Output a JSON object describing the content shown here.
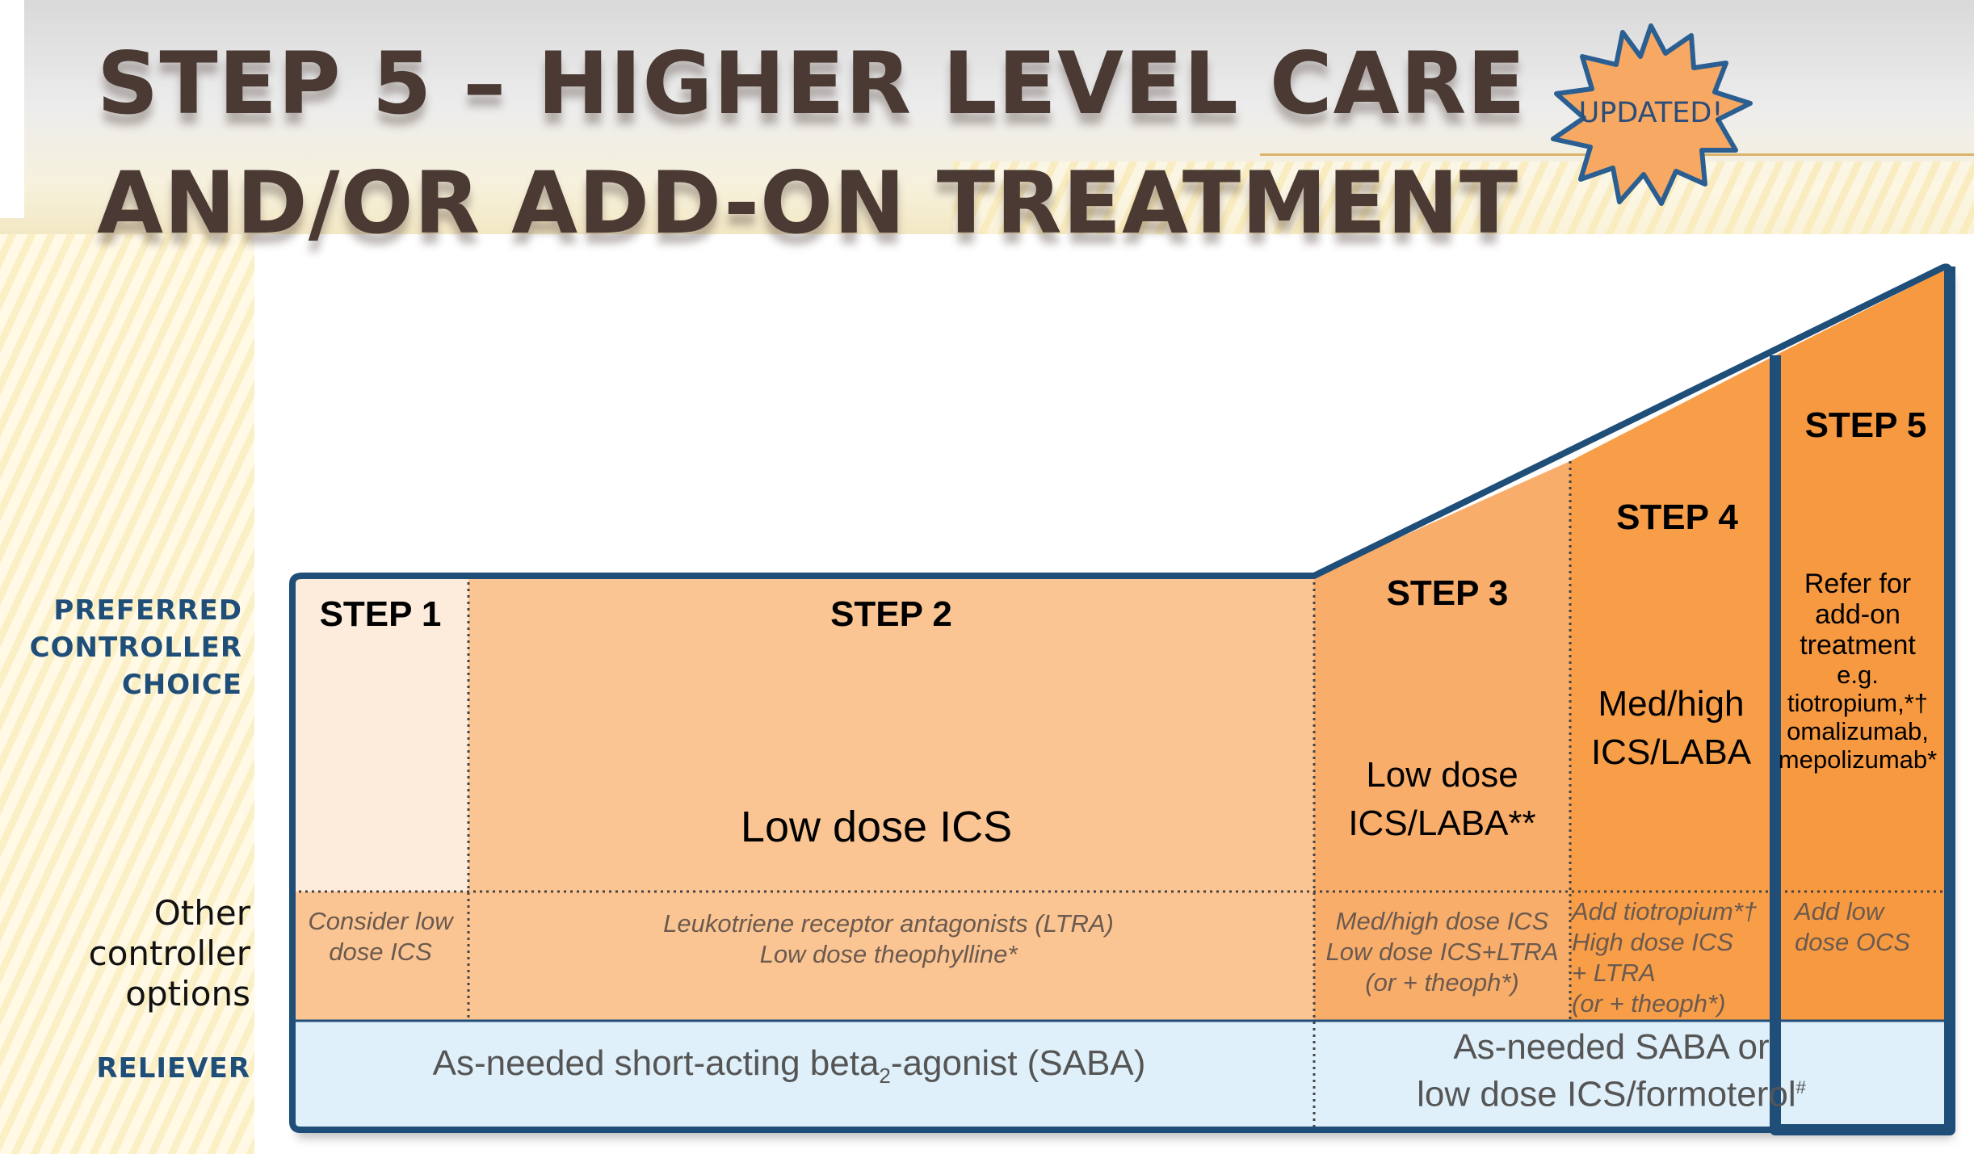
{
  "title": {
    "line1": "STEP 5 – HIGHER LEVEL CARE",
    "line2": "AND/OR ADD-ON TREATMENT"
  },
  "badge": {
    "label": "UPDATED!",
    "fill": "#f7a862",
    "stroke": "#2b5f91"
  },
  "row_labels": {
    "preferred_1": "PREFERRED",
    "preferred_2": "CONTROLLER",
    "preferred_3": "CHOICE",
    "other_1": "Other",
    "other_2": "controller",
    "other_3": "options",
    "reliever": "RELIEVER"
  },
  "steps": {
    "step1": {
      "heading": "STEP 1",
      "other_1": "Consider low",
      "other_2": "dose ICS"
    },
    "step2": {
      "heading": "STEP 2",
      "preferred": "Low dose ICS",
      "other_1": "Leukotriene receptor antagonists (LTRA)",
      "other_2": "Low dose theophylline*"
    },
    "step3": {
      "heading": "STEP 3",
      "preferred_1": "Low dose",
      "preferred_2": "ICS/LABA**",
      "other_1": "Med/high dose ICS",
      "other_2": "Low dose ICS+LTRA",
      "other_3": "(or + theoph*)"
    },
    "step4": {
      "heading": "STEP 4",
      "preferred_1": "Med/high",
      "preferred_2": "ICS/LABA",
      "other_1": "Add tiotropium*†",
      "other_2": "High dose ICS",
      "other_3": "+ LTRA",
      "other_4": "(or + theoph*)"
    },
    "step5": {
      "heading": "STEP 5",
      "preferred_1": "Refer for",
      "preferred_2": "add-on",
      "preferred_3": "treatment",
      "preferred_4": "e.g.",
      "preferred_5": "tiotropium,*†",
      "preferred_6": "omalizumab,",
      "preferred_7": "mepolizumab*",
      "other_1": "Add low",
      "other_2": "dose OCS"
    }
  },
  "reliever": {
    "left_a": "As-needed short-acting beta",
    "left_sub": "2",
    "left_b": "-agonist (SABA)",
    "right_1": "As-needed SABA or",
    "right_2a": "low dose ICS/formoterol",
    "right_2sup": "#"
  },
  "colors": {
    "step1": "#fdebdc",
    "step2": "#fbc593",
    "step3": "#f9ad6a",
    "step4": "#f89e4a",
    "step5": "#f7993f",
    "reliever": "#dff0fa",
    "border": "#1f4e79"
  }
}
